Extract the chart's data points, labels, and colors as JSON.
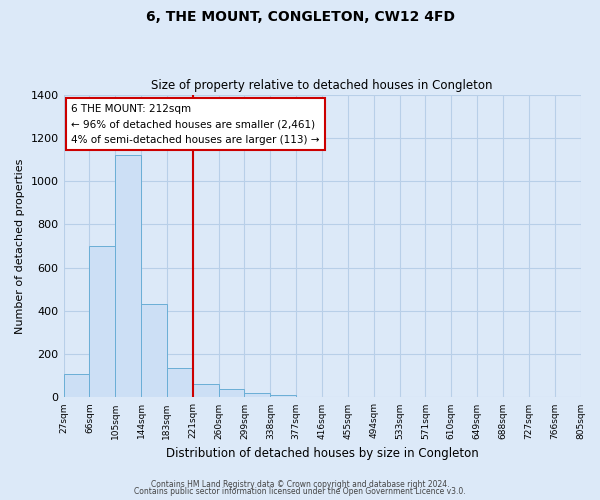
{
  "title": "6, THE MOUNT, CONGLETON, CW12 4FD",
  "subtitle": "Size of property relative to detached houses in Congleton",
  "xlabel": "Distribution of detached houses by size in Congleton",
  "ylabel": "Number of detached properties",
  "bin_labels": [
    "27sqm",
    "66sqm",
    "105sqm",
    "144sqm",
    "183sqm",
    "221sqm",
    "260sqm",
    "299sqm",
    "338sqm",
    "377sqm",
    "416sqm",
    "455sqm",
    "494sqm",
    "533sqm",
    "571sqm",
    "610sqm",
    "649sqm",
    "688sqm",
    "727sqm",
    "766sqm",
    "805sqm"
  ],
  "bar_heights": [
    110,
    700,
    1120,
    430,
    135,
    60,
    40,
    20,
    10,
    0,
    0,
    0,
    0,
    0,
    0,
    0,
    0,
    0,
    0,
    0
  ],
  "bar_color": "#ccdff5",
  "bar_edge_color": "#6aaed6",
  "vline_x_index": 5,
  "vline_color": "#cc0000",
  "ylim": [
    0,
    1400
  ],
  "yticks": [
    0,
    200,
    400,
    600,
    800,
    1000,
    1200,
    1400
  ],
  "annotation_title": "6 THE MOUNT: 212sqm",
  "annotation_line1": "← 96% of detached houses are smaller (2,461)",
  "annotation_line2": "4% of semi-detached houses are larger (113) →",
  "annotation_box_color": "#ffffff",
  "annotation_box_edge": "#cc0000",
  "footer_line1": "Contains HM Land Registry data © Crown copyright and database right 2024.",
  "footer_line2": "Contains public sector information licensed under the Open Government Licence v3.0.",
  "background_color": "#dce9f8",
  "plot_bg_color": "#dce9f8",
  "grid_color": "#b8cfe8"
}
